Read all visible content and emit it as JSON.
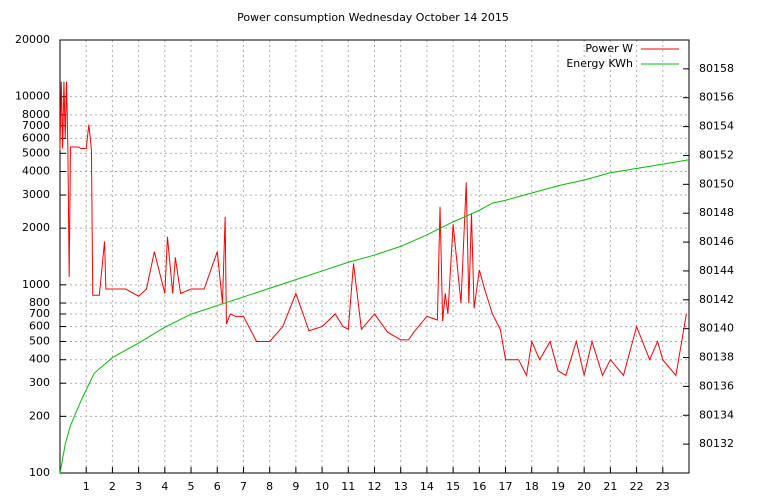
{
  "chart_data": {
    "type": "line",
    "title": "Power consumption Wednesday October 14 2015",
    "xlim": [
      0,
      24
    ],
    "xticks": [
      1,
      2,
      3,
      4,
      5,
      6,
      7,
      8,
      9,
      10,
      11,
      12,
      13,
      14,
      15,
      16,
      17,
      18,
      19,
      20,
      21,
      22,
      23
    ],
    "ylim": [
      100,
      20000
    ],
    "log_y": true,
    "yticks": [
      100,
      200,
      300,
      400,
      500,
      600,
      700,
      800,
      1000,
      2000,
      3000,
      4000,
      5000,
      6000,
      7000,
      8000,
      10000,
      20000
    ],
    "y2lim": [
      80130,
      80160
    ],
    "y2ticks": [
      80132,
      80134,
      80136,
      80138,
      80140,
      80142,
      80144,
      80146,
      80148,
      80150,
      80152,
      80154,
      80156,
      80158
    ],
    "grid": true,
    "legend": "upper-right",
    "series": [
      {
        "name": "Power W",
        "color": "#ff0000",
        "x": [
          0,
          0.05,
          0.1,
          0.15,
          0.2,
          0.25,
          0.3,
          0.35,
          0.4,
          0.5,
          0.6,
          0.7,
          0.8,
          0.9,
          1.0,
          1.1,
          1.2,
          1.25,
          1.5,
          1.7,
          1.75,
          2.0,
          2.5,
          3.0,
          3.3,
          3.6,
          4.0,
          4.1,
          4.3,
          4.4,
          4.6,
          5.0,
          5.5,
          6.0,
          6.2,
          6.3,
          6.35,
          6.5,
          6.7,
          7.0,
          7.5,
          8.0,
          8.5,
          9.0,
          9.5,
          10.0,
          10.5,
          10.8,
          11.0,
          11.2,
          11.5,
          12.0,
          12.5,
          13.0,
          13.3,
          13.5,
          14.0,
          14.4,
          14.5,
          14.6,
          14.7,
          14.8,
          15.0,
          15.3,
          15.5,
          15.6,
          15.7,
          15.8,
          16.0,
          16.2,
          16.5,
          16.8,
          17.0,
          17.5,
          17.8,
          18.0,
          18.3,
          18.7,
          19.0,
          19.3,
          19.7,
          20.0,
          20.3,
          20.7,
          21.0,
          21.5,
          22.0,
          22.5,
          22.8,
          23.0,
          23.5,
          23.9
        ],
        "values": [
          5200,
          12000,
          5300,
          12000,
          6000,
          12000,
          5400,
          1100,
          5400,
          5400,
          5400,
          5400,
          5300,
          5300,
          5300,
          7100,
          5200,
          880,
          880,
          1700,
          950,
          950,
          950,
          870,
          950,
          1500,
          900,
          1800,
          900,
          1400,
          900,
          950,
          950,
          1500,
          800,
          2300,
          620,
          700,
          680,
          680,
          500,
          500,
          600,
          900,
          570,
          600,
          700,
          600,
          580,
          1300,
          580,
          700,
          560,
          510,
          510,
          560,
          680,
          650,
          2600,
          640,
          900,
          700,
          2100,
          800,
          3500,
          800,
          2400,
          750,
          1200,
          950,
          700,
          580,
          400,
          400,
          330,
          500,
          400,
          500,
          350,
          330,
          500,
          330,
          500,
          330,
          400,
          330,
          600,
          400,
          500,
          400,
          330,
          700
        ]
      },
      {
        "name": "Energy KWh",
        "color": "#00c000",
        "axis": "y2",
        "x": [
          0,
          0.2,
          0.4,
          0.8,
          1.3,
          2,
          3,
          4,
          5,
          6,
          7,
          8,
          9,
          10,
          11,
          12,
          13,
          14,
          15,
          16,
          16.5,
          17,
          18,
          19,
          20,
          21,
          22,
          23,
          24
        ],
        "values": [
          80130,
          80132,
          80133.3,
          80135,
          80136.9,
          80138,
          80139,
          80140.1,
          80141,
          80141.6,
          80142.2,
          80142.8,
          80143.4,
          80144,
          80144.6,
          80145.1,
          80145.7,
          80146.5,
          80147.4,
          80148.2,
          80148.7,
          80148.9,
          80149.4,
          80149.9,
          80150.3,
          80150.8,
          80151.1,
          80151.4,
          80151.7
        ]
      }
    ]
  }
}
